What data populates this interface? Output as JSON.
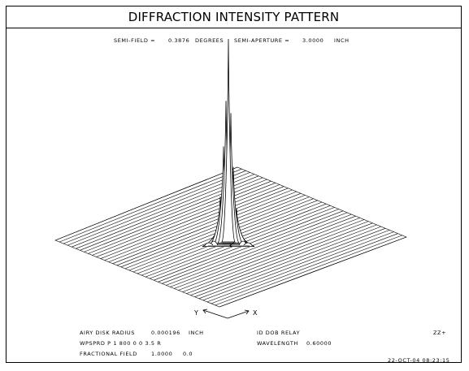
{
  "title": "DIFFRACTION INTENSITY PATTERN",
  "header": {
    "semi_field_label": "SEMI-FIELD =",
    "semi_field_value": "0.3876",
    "semi_field_unit": "DEGREES",
    "semi_aperture_label": "SEMI-APERTURE =",
    "semi_aperture_value": "3.0000",
    "semi_aperture_unit": "INCH"
  },
  "axes": {
    "y_label": "Y",
    "x_label": "X"
  },
  "footer": {
    "airy_label": "AIRY DISK RADIUS",
    "airy_value": "0.000196",
    "airy_unit": "INCH",
    "lens_name": "ID DOB RELAY",
    "code": "ZZ+",
    "command": "WPSPRD P 1 800 0 0 3.5 R",
    "wavelength_label": "WAVELENGTH",
    "wavelength_value": "0.60000",
    "fractional_label": "FRACTIONAL FIELD",
    "fractional_value1": "1.0000",
    "fractional_value2": "0.0",
    "timestamp": "22-OCT-04 08:23:15"
  },
  "colors": {
    "ink": "#000000",
    "paper": "#ffffff"
  }
}
